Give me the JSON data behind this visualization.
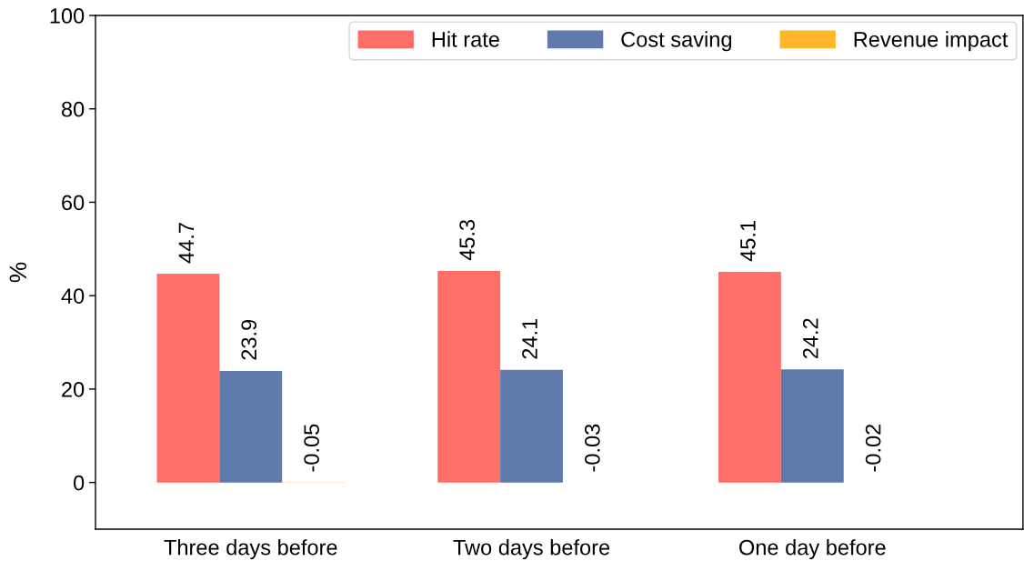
{
  "chart_data": {
    "type": "bar",
    "ylabel": "%",
    "categories": [
      "Three days before",
      "Two days before",
      "One day before"
    ],
    "series": [
      {
        "name": "Hit rate",
        "color": "#ff6f69",
        "values": [
          44.7,
          45.3,
          45.1
        ]
      },
      {
        "name": "Cost saving",
        "color": "#5f7aab",
        "values": [
          23.9,
          24.1,
          24.2
        ]
      },
      {
        "name": "Revenue impact",
        "color": "#ffb62b",
        "values": [
          -0.05,
          -0.03,
          -0.02
        ]
      }
    ],
    "ylim": [
      -10,
      100
    ],
    "yticks": [
      0,
      20,
      40,
      60,
      80,
      100
    ],
    "data_labels": true,
    "grid": false,
    "legend": "top right"
  }
}
